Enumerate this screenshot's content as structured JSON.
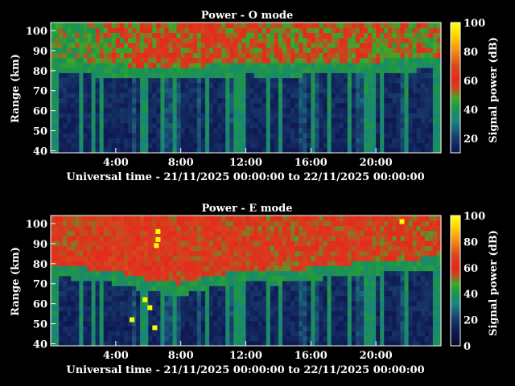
{
  "chart_data": [
    {
      "type": "heatmap",
      "title": "Power - O mode",
      "xlabel": "Universal time - 21/11/2025 00:00:00 to 22/11/2025 00:00:00",
      "ylabel": "Range (km)",
      "xlim": [
        0,
        24
      ],
      "ylim": [
        39,
        104
      ],
      "x_ticks": [
        "4:00",
        "8:00",
        "12:00",
        "16:00",
        "20:00"
      ],
      "x_tick_values": [
        4,
        8,
        12,
        16,
        20
      ],
      "y_ticks": [
        "40",
        "50",
        "60",
        "70",
        "80",
        "90",
        "100"
      ],
      "y_tick_values": [
        40,
        50,
        60,
        70,
        80,
        90,
        100
      ],
      "colorbar": {
        "label": "Signal power (dB)",
        "range": [
          10,
          100
        ],
        "ticks": [
          "20",
          "40",
          "60",
          "80",
          "100"
        ],
        "tick_values": [
          20,
          40,
          60,
          80,
          100
        ]
      },
      "profile": [
        {
          "t": 0,
          "base": 82,
          "top_db": 45
        },
        {
          "t": 2,
          "base": 80,
          "top_db": 48
        },
        {
          "t": 4,
          "base": 79,
          "top_db": 52
        },
        {
          "t": 6,
          "base": 78,
          "top_db": 55
        },
        {
          "t": 8,
          "base": 78,
          "top_db": 56
        },
        {
          "t": 10,
          "base": 79,
          "top_db": 58
        },
        {
          "t": 12,
          "base": 80,
          "top_db": 56
        },
        {
          "t": 14,
          "base": 79,
          "top_db": 52
        },
        {
          "t": 16,
          "base": 80,
          "top_db": 54
        },
        {
          "t": 18,
          "base": 80,
          "top_db": 55
        },
        {
          "t": 20,
          "base": 81,
          "top_db": 54
        },
        {
          "t": 22,
          "base": 82,
          "top_db": 52
        },
        {
          "t": 24,
          "base": 83,
          "top_db": 50
        }
      ]
    },
    {
      "type": "heatmap",
      "title": "Power - E mode",
      "xlabel": "Universal time - 21/11/2025 00:00:00 to 22/11/2025 00:00:00",
      "ylabel": "Range (km)",
      "xlim": [
        0,
        24
      ],
      "ylim": [
        39,
        104
      ],
      "x_ticks": [
        "4:00",
        "8:00",
        "12:00",
        "16:00",
        "20:00"
      ],
      "x_tick_values": [
        4,
        8,
        12,
        16,
        20
      ],
      "y_ticks": [
        "40",
        "50",
        "60",
        "70",
        "80",
        "90",
        "100"
      ],
      "y_tick_values": [
        40,
        50,
        60,
        70,
        80,
        90,
        100
      ],
      "colorbar": {
        "label": "Signal power (dB)",
        "range": [
          0,
          100
        ],
        "ticks": [
          "0",
          "20",
          "40",
          "60",
          "80",
          "100"
        ],
        "tick_values": [
          0,
          20,
          40,
          60,
          80,
          100
        ]
      },
      "profile": [
        {
          "t": 0,
          "base": 76,
          "top_db": 58
        },
        {
          "t": 2,
          "base": 74,
          "top_db": 60
        },
        {
          "t": 4,
          "base": 72,
          "top_db": 62
        },
        {
          "t": 6,
          "base": 68,
          "top_db": 62
        },
        {
          "t": 8,
          "base": 66,
          "top_db": 60
        },
        {
          "t": 10,
          "base": 70,
          "top_db": 60
        },
        {
          "t": 12,
          "base": 73,
          "top_db": 60
        },
        {
          "t": 14,
          "base": 72,
          "top_db": 57
        },
        {
          "t": 16,
          "base": 74,
          "top_db": 58
        },
        {
          "t": 18,
          "base": 76,
          "top_db": 60
        },
        {
          "t": 20,
          "base": 77,
          "top_db": 59
        },
        {
          "t": 22,
          "base": 78,
          "top_db": 58
        },
        {
          "t": 24,
          "base": 80,
          "top_db": 56
        }
      ],
      "saturated": [
        {
          "t": 6.5,
          "range": 89,
          "db": 100
        },
        {
          "t": 6.6,
          "range": 92,
          "db": 100
        },
        {
          "t": 6.6,
          "range": 96,
          "db": 100
        },
        {
          "t": 5.8,
          "range": 62,
          "db": 100
        },
        {
          "t": 6.1,
          "range": 58,
          "db": 100
        },
        {
          "t": 5.0,
          "range": 52,
          "db": 100
        },
        {
          "t": 6.4,
          "range": 48,
          "db": 100
        },
        {
          "t": 21.6,
          "range": 101,
          "db": 100
        }
      ]
    }
  ]
}
